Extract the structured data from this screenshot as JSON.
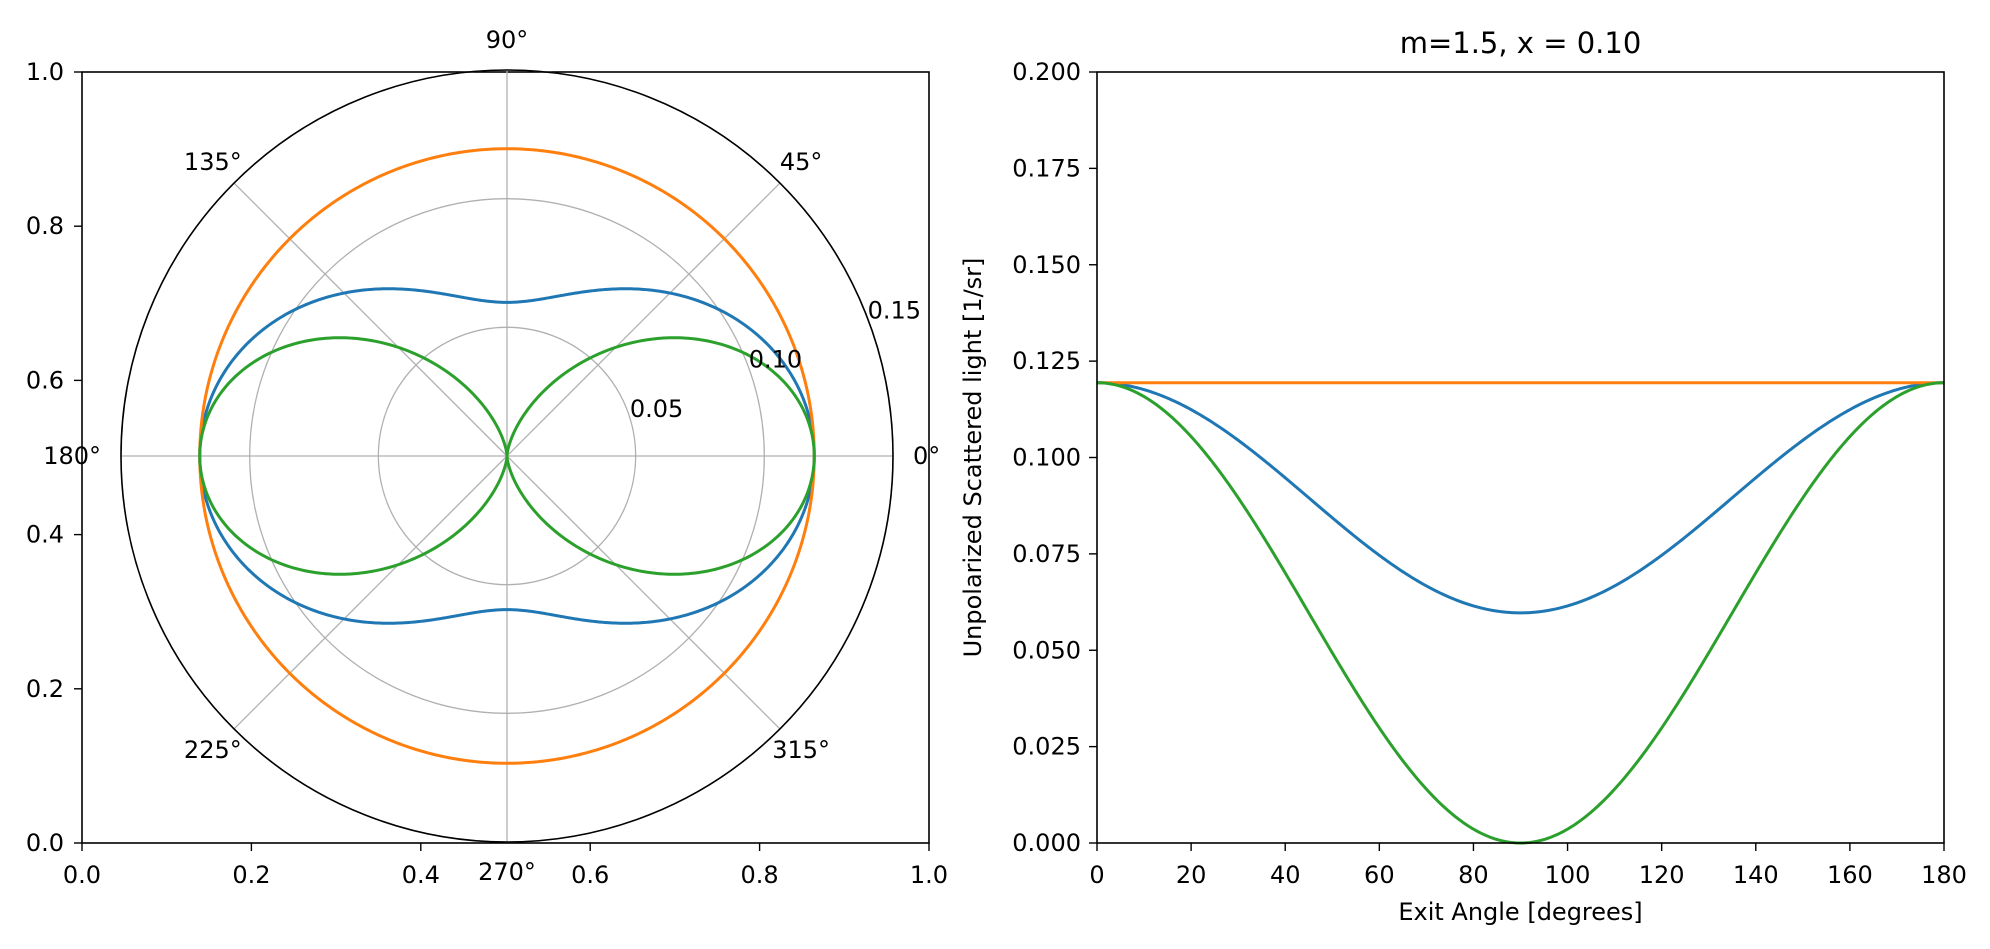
{
  "chart_data": [
    {
      "type": "line",
      "subtype": "polar",
      "title": "",
      "cartesian_frame": {
        "xlim": [
          0.0,
          1.0
        ],
        "ylim": [
          0.0,
          1.0
        ],
        "xticks": [
          "0.0",
          "0.2",
          "0.4",
          "0.6",
          "0.8",
          "1.0"
        ],
        "yticks": [
          "0.0",
          "0.2",
          "0.4",
          "0.6",
          "0.8",
          "1.0"
        ]
      },
      "radial_ticks": [
        0.05,
        0.1,
        0.15
      ],
      "radial_tick_labels": [
        "0.05",
        "0.10",
        "0.15"
      ],
      "rmax": 0.15,
      "angle_ticks": [
        0,
        45,
        90,
        135,
        180,
        225,
        270,
        315
      ],
      "angle_tick_labels": [
        "0°",
        "45°",
        "90°",
        "135°",
        "180°",
        "225°",
        "270°",
        "315°"
      ],
      "grid": true,
      "series": [
        {
          "color": "#1f77b4",
          "model": "0.0597 * (1 + cos^2(theta))",
          "points_theta_deg": [
            0,
            45,
            90,
            135,
            180
          ],
          "points_r": [
            0.1194,
            0.0896,
            0.0597,
            0.0896,
            0.1194
          ]
        },
        {
          "color": "#ff7f0e",
          "model": "constant",
          "points_theta_deg": [
            0,
            90,
            180
          ],
          "points_r": [
            0.1194,
            0.1194,
            0.1194
          ]
        },
        {
          "color": "#2ca02c",
          "model": "0.1194 * cos^2(theta)",
          "points_theta_deg": [
            0,
            45,
            90,
            135,
            180
          ],
          "points_r": [
            0.1194,
            0.0597,
            0.0,
            0.0597,
            0.1194
          ]
        }
      ]
    },
    {
      "type": "line",
      "title": "m=1.5, x = 0.10",
      "xlabel": "Exit Angle [degrees]",
      "ylabel": "Unpolarized Scattered light [1/sr]",
      "xlim": [
        0,
        180
      ],
      "ylim": [
        0.0,
        0.2
      ],
      "xticks": [
        0,
        20,
        40,
        60,
        80,
        100,
        120,
        140,
        160,
        180
      ],
      "xtick_labels": [
        "0",
        "20",
        "40",
        "60",
        "80",
        "100",
        "120",
        "140",
        "160",
        "180"
      ],
      "yticks": [
        0.0,
        0.025,
        0.05,
        0.075,
        0.1,
        0.125,
        0.15,
        0.175,
        0.2
      ],
      "ytick_labels": [
        "0.000",
        "0.025",
        "0.050",
        "0.075",
        "0.100",
        "0.125",
        "0.150",
        "0.175",
        "0.200"
      ],
      "grid": false,
      "series": [
        {
          "color": "#1f77b4",
          "model": "0.0597 * (1 + cos^2(theta))",
          "x": [
            0,
            30,
            60,
            90,
            120,
            150,
            180
          ],
          "y": [
            0.1194,
            0.1045,
            0.0746,
            0.0597,
            0.0746,
            0.1045,
            0.1194
          ]
        },
        {
          "color": "#ff7f0e",
          "model": "constant",
          "x": [
            0,
            180
          ],
          "y": [
            0.1194,
            0.1194
          ]
        },
        {
          "color": "#2ca02c",
          "model": "0.1194 * cos^2(theta)",
          "x": [
            0,
            30,
            60,
            90,
            120,
            150,
            180
          ],
          "y": [
            0.1194,
            0.0896,
            0.0299,
            0.0,
            0.0299,
            0.0896,
            0.1194
          ]
        }
      ]
    }
  ]
}
